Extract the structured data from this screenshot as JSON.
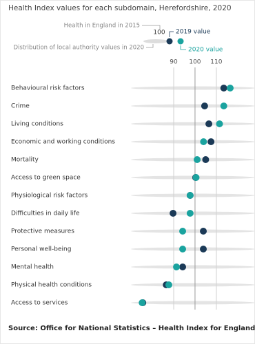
{
  "chart_data": {
    "type": "dot",
    "title": "Health Index values for each subdomain, Herefordshire, 2020",
    "reference": {
      "label": "Health in England in 2015",
      "value": 100
    },
    "distribution_label": "Distribution of local authority values in 2020",
    "categories": [
      "Behavioural risk factors",
      "Crime",
      "Living conditions",
      "Economic and working conditions",
      "Mortality",
      "Access to green space",
      "Physiological risk factors",
      "Difficulties in daily life",
      "Protective measures",
      "Personal well-being",
      "Mental health",
      "Physical health conditions",
      "Access to services"
    ],
    "series": [
      {
        "name": "2019 value",
        "color": "#1b3a57",
        "values": [
          113.5,
          104.5,
          106.5,
          107.5,
          105,
          100.3,
          97.7,
          89.7,
          103.9,
          103.9,
          94.2,
          86.5,
          75.5
        ]
      },
      {
        "name": "2020 value",
        "color": "#1aa39f",
        "values": [
          116.5,
          113.5,
          111.5,
          104,
          101,
          100.5,
          97.7,
          97.7,
          94.2,
          94.2,
          91.3,
          87.7,
          75.2
        ]
      }
    ],
    "xlim": [
      68,
      122
    ],
    "xticks": [
      90,
      100,
      110
    ],
    "source": "Source: Office for National Statistics – Health Index for England"
  }
}
